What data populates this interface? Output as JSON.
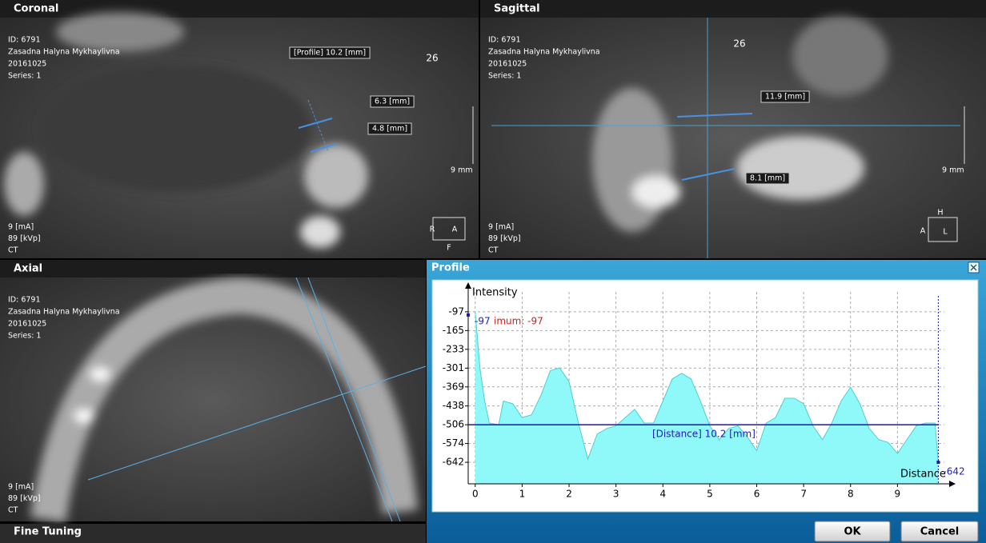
{
  "views": [
    {
      "title": "Coronal",
      "info": [
        "ID: 6791",
        "Zasadna Halyna Mykhaylivna",
        "20161025",
        "Series: 1"
      ],
      "slice": "26",
      "scale": "9 mm",
      "params": [
        "9 [mA]",
        "89 [kVp]",
        "CT"
      ],
      "measurements": [
        "[Profile] 10.2 [mm]",
        "6.3 [mm]",
        "4.8 [mm]"
      ],
      "orientation": [
        "R",
        "A",
        "F"
      ]
    },
    {
      "title": "Sagittal",
      "info": [
        "ID: 6791",
        "Zasadna Halyna Mykhaylivna",
        "20161025",
        "Series: 1"
      ],
      "slice": "26",
      "scale": "9 mm",
      "params": [
        "9 [mA]",
        "89 [kVp]",
        "CT"
      ],
      "measurements": [
        "11.9 [mm]",
        "8.1 [mm]"
      ],
      "orientation": [
        "H",
        "A",
        "L"
      ]
    },
    {
      "title": "Axial",
      "info": [
        "ID: 6791",
        "Zasadna Halyna Mykhaylivna",
        "20161025",
        "Series: 1"
      ],
      "params": [
        "9 [mA]",
        "89 [kVp]",
        "CT"
      ]
    }
  ],
  "fine_tuning": "Fine Tuning",
  "profile": {
    "title": "Profile",
    "y_label": "Intensity",
    "x_label": "Distance",
    "yticks": [
      -97,
      -165,
      -233,
      -301,
      -369,
      -438,
      -506,
      -574,
      -642
    ],
    "xticks": [
      0,
      1,
      2,
      3,
      4,
      5,
      6,
      7,
      8,
      9
    ],
    "xlim": [
      -0.15,
      10
    ],
    "ylim": [
      -720,
      -25
    ],
    "x": [
      0,
      0.1,
      0.2,
      0.3,
      0.5,
      0.6,
      0.8,
      1,
      1.2,
      1.4,
      1.6,
      1.8,
      2,
      2.2,
      2.4,
      2.6,
      2.8,
      3,
      3.2,
      3.4,
      3.6,
      3.8,
      4,
      4.2,
      4.4,
      4.6,
      4.8,
      5,
      5.2,
      5.4,
      5.6,
      5.8,
      6,
      6.2,
      6.4,
      6.6,
      6.8,
      7,
      7.2,
      7.4,
      7.6,
      7.8,
      8,
      8.2,
      8.4,
      8.6,
      8.8,
      9,
      9.2,
      9.4,
      9.6,
      9.8,
      9.87
    ],
    "values": [
      -97,
      -301,
      -420,
      -500,
      -506,
      -420,
      -430,
      -480,
      -470,
      -400,
      -310,
      -300,
      -350,
      -500,
      -630,
      -540,
      -520,
      -510,
      -480,
      -450,
      -500,
      -500,
      -420,
      -340,
      -320,
      -340,
      -420,
      -510,
      -560,
      -520,
      -510,
      -550,
      -600,
      -500,
      -480,
      -410,
      -410,
      -430,
      -510,
      -560,
      -500,
      -420,
      -370,
      -430,
      -520,
      -560,
      -570,
      -610,
      -560,
      -510,
      -500,
      -500,
      -642
    ],
    "color": "#8ff8f8",
    "max_label": "-97",
    "max_caption": "imum: -97",
    "distance_label": "[Distance] 10.2 [mm]",
    "distance_level": -506,
    "cursor_x": 9.87,
    "min_label": "-642"
  },
  "buttons": [
    "OK",
    "Cancel"
  ]
}
